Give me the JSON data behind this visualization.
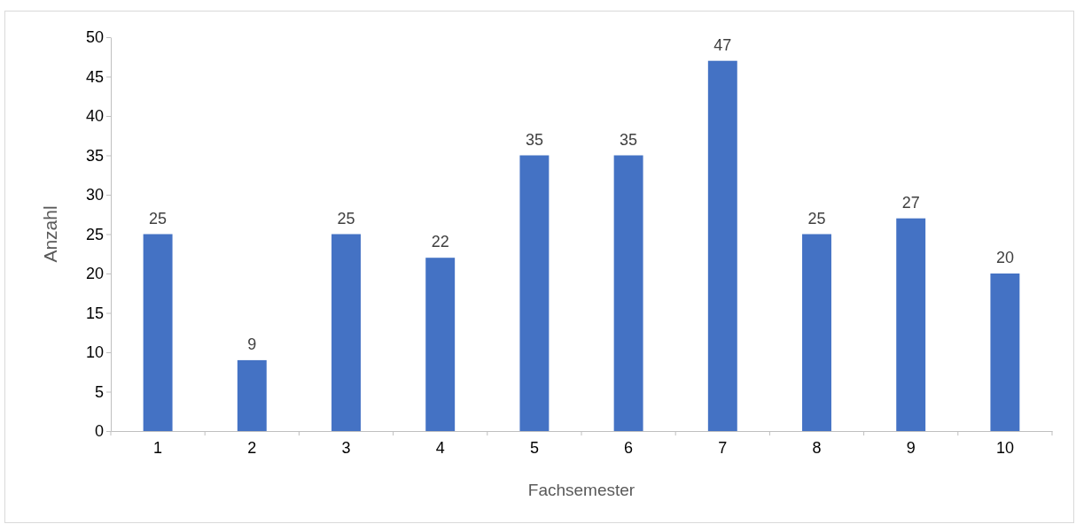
{
  "chart_data": {
    "type": "bar",
    "xlabel": "Fachsemester",
    "ylabel": "Anzahl",
    "categories": [
      "1",
      "2",
      "3",
      "4",
      "5",
      "6",
      "7",
      "8",
      "9",
      "10"
    ],
    "values": [
      25,
      9,
      25,
      22,
      35,
      35,
      47,
      25,
      27,
      20
    ],
    "color": "#4472c4",
    "ylim": [
      0,
      50
    ],
    "yticks": [
      0,
      5,
      10,
      15,
      20,
      25,
      30,
      35,
      40,
      45,
      50
    ],
    "grid": false,
    "data_labels": true
  }
}
